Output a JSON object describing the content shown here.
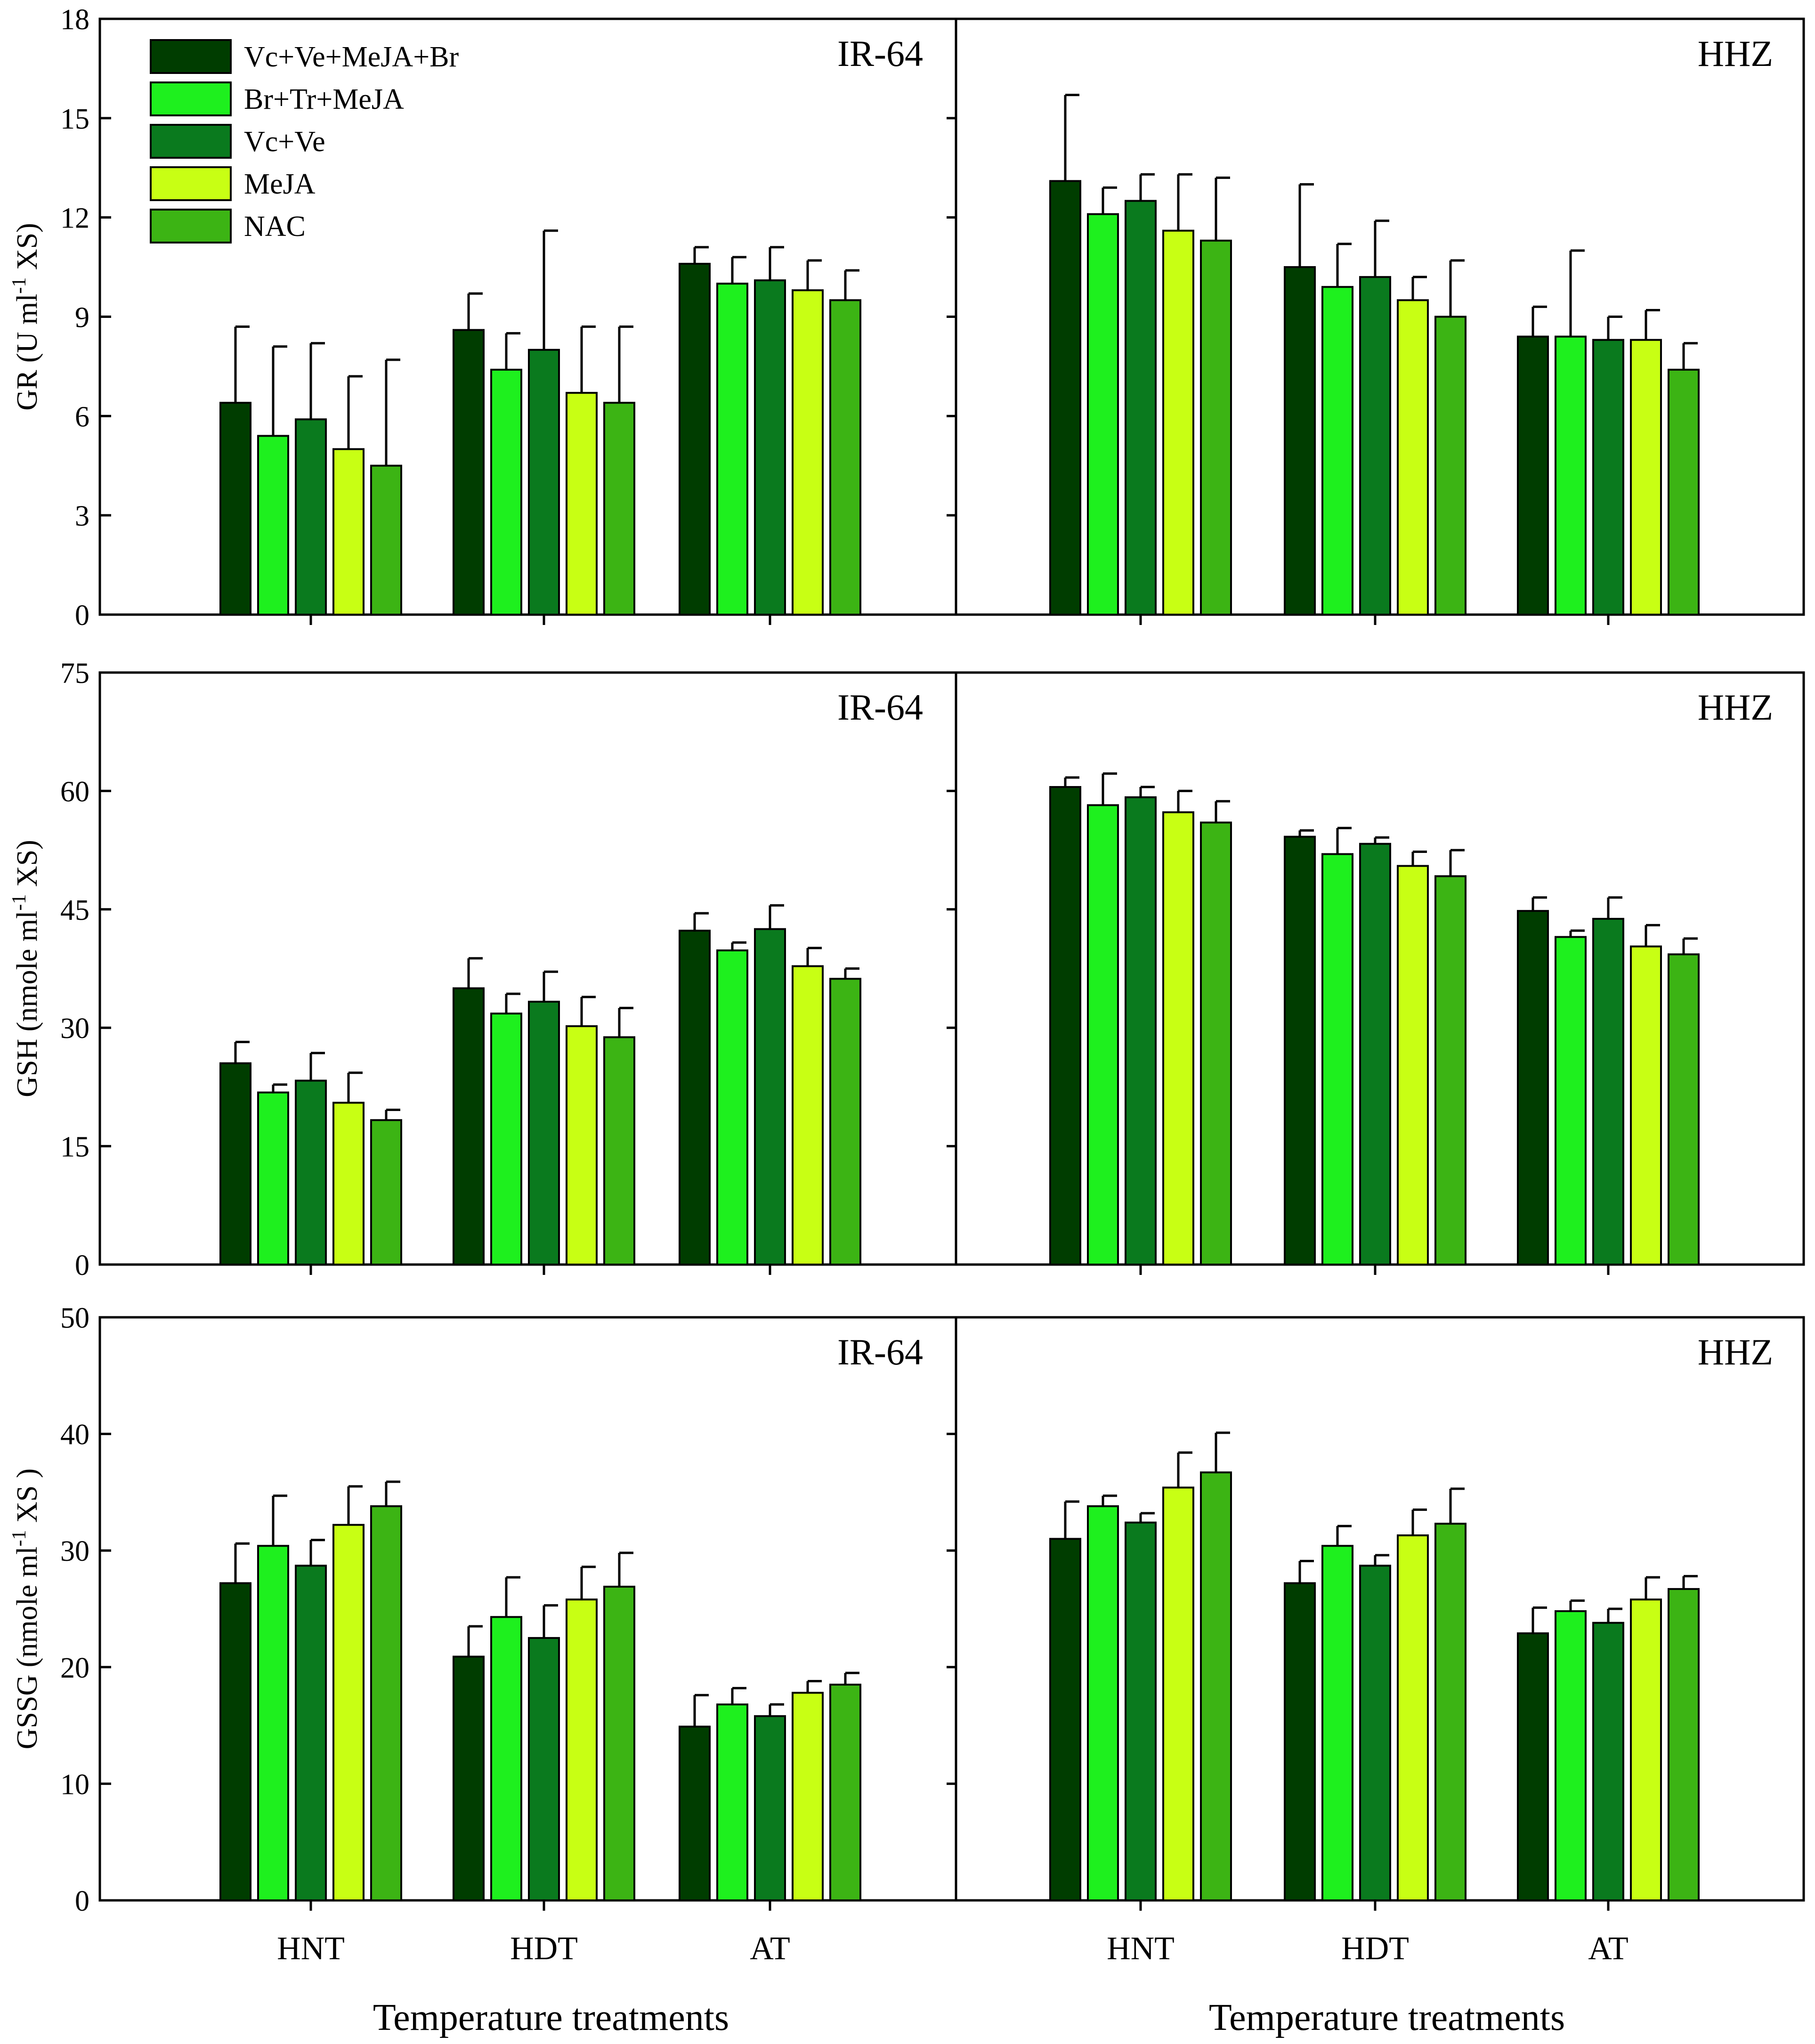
{
  "chart_data": {
    "type": "bar",
    "categories": [
      "HNT",
      "HDT",
      "AT"
    ],
    "x_title": "Temperature treatments",
    "legend": [
      {
        "name": "Vc+Ve+MeJA+Br",
        "color": "#003d00"
      },
      {
        "name": "Br+Tr+MeJA",
        "color": "#1ef01e"
      },
      {
        "name": "Vc+Ve",
        "color": "#0a7a1e"
      },
      {
        "name": "MeJA",
        "color": "#c8ff14"
      },
      {
        "name": "NAC",
        "color": "#3cb414"
      }
    ],
    "rows": [
      {
        "y_title": "GR (U ml-1 XS)",
        "y_title_main": "GR (U ml",
        "y_title_sup": "-1",
        "y_title_tail": " XS)",
        "ylim": [
          0,
          18
        ],
        "yticks": [
          0,
          3,
          6,
          9,
          12,
          15,
          18
        ],
        "panels": [
          {
            "label": "IR-64",
            "series": [
              {
                "name": "Vc+Ve+MeJA+Br",
                "values": [
                  6.4,
                  8.6,
                  10.6
                ],
                "errors": [
                  2.3,
                  1.1,
                  0.5
                ]
              },
              {
                "name": "Br+Tr+MeJA",
                "values": [
                  5.4,
                  7.4,
                  10.0
                ],
                "errors": [
                  2.7,
                  1.1,
                  0.8
                ]
              },
              {
                "name": "Vc+Ve",
                "values": [
                  5.9,
                  8.0,
                  10.1
                ],
                "errors": [
                  2.3,
                  3.6,
                  1.0
                ]
              },
              {
                "name": "MeJA",
                "values": [
                  5.0,
                  6.7,
                  9.8
                ],
                "errors": [
                  2.2,
                  2.0,
                  0.9
                ]
              },
              {
                "name": "NAC",
                "values": [
                  4.5,
                  6.4,
                  9.5
                ],
                "errors": [
                  3.2,
                  2.3,
                  0.9
                ]
              }
            ]
          },
          {
            "label": "HHZ",
            "series": [
              {
                "name": "Vc+Ve+MeJA+Br",
                "values": [
                  13.1,
                  10.5,
                  8.4
                ],
                "errors": [
                  2.6,
                  2.5,
                  0.9
                ]
              },
              {
                "name": "Br+Tr+MeJA",
                "values": [
                  12.1,
                  9.9,
                  8.4
                ],
                "errors": [
                  0.8,
                  1.3,
                  2.6
                ]
              },
              {
                "name": "Vc+Ve",
                "values": [
                  12.5,
                  10.2,
                  8.3
                ],
                "errors": [
                  0.8,
                  1.7,
                  0.7
                ]
              },
              {
                "name": "MeJA",
                "values": [
                  11.6,
                  9.5,
                  8.3
                ],
                "errors": [
                  1.7,
                  0.7,
                  0.9
                ]
              },
              {
                "name": "NAC",
                "values": [
                  11.3,
                  9.0,
                  7.4
                ],
                "errors": [
                  1.9,
                  1.7,
                  0.8
                ]
              }
            ]
          }
        ]
      },
      {
        "y_title": "GSH (nmole ml-1 XS)",
        "y_title_main": "GSH (nmole ml",
        "y_title_sup": "-1",
        "y_title_tail": " XS)",
        "ylim": [
          0,
          75
        ],
        "yticks": [
          0,
          15,
          30,
          45,
          60,
          75
        ],
        "panels": [
          {
            "label": "IR-64",
            "series": [
              {
                "name": "Vc+Ve+MeJA+Br",
                "values": [
                  25.5,
                  35.0,
                  42.3
                ],
                "errors": [
                  2.7,
                  3.8,
                  2.2
                ]
              },
              {
                "name": "Br+Tr+MeJA",
                "values": [
                  21.8,
                  31.8,
                  39.8
                ],
                "errors": [
                  1.0,
                  2.5,
                  1.0
                ]
              },
              {
                "name": "Vc+Ve",
                "values": [
                  23.3,
                  33.3,
                  42.5
                ],
                "errors": [
                  3.5,
                  3.8,
                  3.0
                ]
              },
              {
                "name": "MeJA",
                "values": [
                  20.5,
                  30.2,
                  37.8
                ],
                "errors": [
                  3.8,
                  3.7,
                  2.3
                ]
              },
              {
                "name": "NAC",
                "values": [
                  18.3,
                  28.8,
                  36.2
                ],
                "errors": [
                  1.3,
                  3.7,
                  1.3
                ]
              }
            ]
          },
          {
            "label": "HHZ",
            "series": [
              {
                "name": "Vc+Ve+MeJA+Br",
                "values": [
                  60.5,
                  54.2,
                  44.8
                ],
                "errors": [
                  1.2,
                  0.8,
                  1.7
                ]
              },
              {
                "name": "Br+Tr+MeJA",
                "values": [
                  58.2,
                  52.0,
                  41.5
                ],
                "errors": [
                  4.0,
                  3.3,
                  0.8
                ]
              },
              {
                "name": "Vc+Ve",
                "values": [
                  59.2,
                  53.3,
                  43.8
                ],
                "errors": [
                  1.3,
                  0.8,
                  2.7
                ]
              },
              {
                "name": "MeJA",
                "values": [
                  57.3,
                  50.5,
                  40.3
                ],
                "errors": [
                  2.7,
                  1.8,
                  2.7
                ]
              },
              {
                "name": "NAC",
                "values": [
                  56.0,
                  49.2,
                  39.3
                ],
                "errors": [
                  2.7,
                  3.3,
                  2.0
                ]
              }
            ]
          }
        ]
      },
      {
        "y_title": "GSSG (nmole ml-1 XS )",
        "y_title_main": "GSSG (nmole ml",
        "y_title_sup": "-1",
        "y_title_tail": " XS )",
        "ylim": [
          0,
          50
        ],
        "yticks": [
          0,
          10,
          20,
          30,
          40,
          50
        ],
        "panels": [
          {
            "label": "IR-64",
            "series": [
              {
                "name": "Vc+Ve+MeJA+Br",
                "values": [
                  27.2,
                  20.9,
                  14.9
                ],
                "errors": [
                  3.4,
                  2.6,
                  2.7
                ]
              },
              {
                "name": "Br+Tr+MeJA",
                "values": [
                  30.4,
                  24.3,
                  16.8
                ],
                "errors": [
                  4.3,
                  3.4,
                  1.4
                ]
              },
              {
                "name": "Vc+Ve",
                "values": [
                  28.7,
                  22.5,
                  15.8
                ],
                "errors": [
                  2.2,
                  2.8,
                  1.0
                ]
              },
              {
                "name": "MeJA",
                "values": [
                  32.2,
                  25.8,
                  17.8
                ],
                "errors": [
                  3.3,
                  2.8,
                  1.0
                ]
              },
              {
                "name": "NAC",
                "values": [
                  33.8,
                  26.9,
                  18.5
                ],
                "errors": [
                  2.1,
                  2.9,
                  1.0
                ]
              }
            ]
          },
          {
            "label": "HHZ",
            "series": [
              {
                "name": "Vc+Ve+MeJA+Br",
                "values": [
                  31.0,
                  27.2,
                  22.9
                ],
                "errors": [
                  3.2,
                  1.9,
                  2.2
                ]
              },
              {
                "name": "Br+Tr+MeJA",
                "values": [
                  33.8,
                  30.4,
                  24.8
                ],
                "errors": [
                  0.9,
                  1.7,
                  0.9
                ]
              },
              {
                "name": "Vc+Ve",
                "values": [
                  32.4,
                  28.7,
                  23.8
                ],
                "errors": [
                  0.8,
                  0.9,
                  1.2
                ]
              },
              {
                "name": "MeJA",
                "values": [
                  35.4,
                  31.3,
                  25.8
                ],
                "errors": [
                  3.0,
                  2.2,
                  1.9
                ]
              },
              {
                "name": "NAC",
                "values": [
                  36.7,
                  32.3,
                  26.7
                ],
                "errors": [
                  3.4,
                  3.0,
                  1.1
                ]
              }
            ]
          }
        ]
      }
    ]
  }
}
